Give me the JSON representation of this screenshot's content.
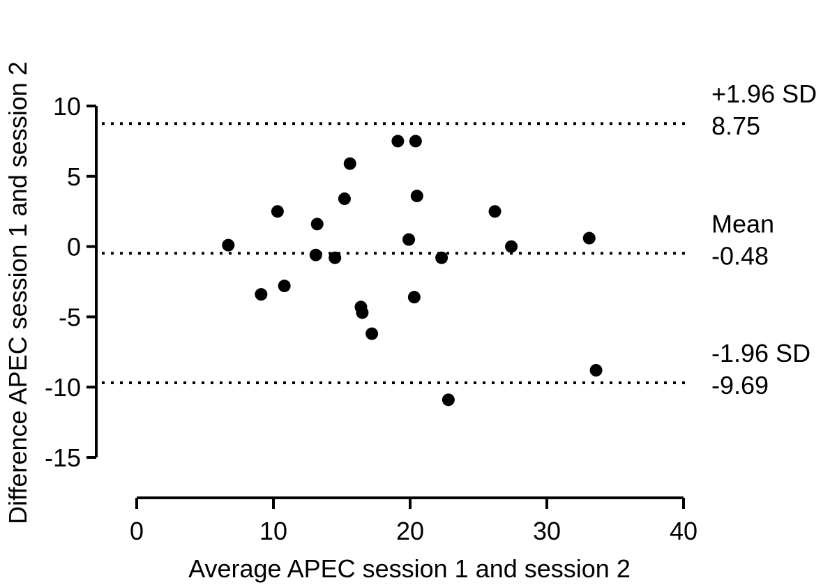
{
  "chart_data": {
    "type": "scatter",
    "title": "",
    "xlabel": "Average APEC session 1 and session 2",
    "ylabel": "Difference APEC session 1 and session 2",
    "xlim": [
      0,
      40
    ],
    "ylim": [
      -15,
      10
    ],
    "xticks": [
      "0",
      "10",
      "20",
      "30",
      "40"
    ],
    "yticks": [
      "10",
      "5",
      "0",
      "-5",
      "-10",
      "-15"
    ],
    "grid": false,
    "legend": "none",
    "marker_color": "#000000",
    "points": [
      {
        "x": 6.7,
        "y": 0.1
      },
      {
        "x": 9.1,
        "y": -3.4
      },
      {
        "x": 10.3,
        "y": 2.5
      },
      {
        "x": 10.8,
        "y": -2.8
      },
      {
        "x": 13.1,
        "y": -0.6
      },
      {
        "x": 13.2,
        "y": 1.6
      },
      {
        "x": 14.5,
        "y": -0.8
      },
      {
        "x": 15.2,
        "y": 3.4
      },
      {
        "x": 15.6,
        "y": 5.9
      },
      {
        "x": 16.4,
        "y": -4.3
      },
      {
        "x": 16.5,
        "y": -4.7
      },
      {
        "x": 17.2,
        "y": -6.2
      },
      {
        "x": 19.1,
        "y": 7.5
      },
      {
        "x": 19.9,
        "y": 0.5
      },
      {
        "x": 20.3,
        "y": -3.6
      },
      {
        "x": 20.4,
        "y": 7.5
      },
      {
        "x": 20.5,
        "y": 3.6
      },
      {
        "x": 22.3,
        "y": -0.8
      },
      {
        "x": 22.8,
        "y": -10.9
      },
      {
        "x": 26.2,
        "y": 2.5
      },
      {
        "x": 27.4,
        "y": 0.0
      },
      {
        "x": 33.1,
        "y": 0.6
      },
      {
        "x": 33.6,
        "y": -8.8
      }
    ],
    "reference_lines": [
      {
        "y": 8.75,
        "label": "+1.96 SD",
        "value_label": "8.75"
      },
      {
        "y": -0.48,
        "label": "Mean",
        "value_label": "-0.48"
      },
      {
        "y": -9.69,
        "label": "-1.96 SD",
        "value_label": "-9.69"
      }
    ]
  }
}
